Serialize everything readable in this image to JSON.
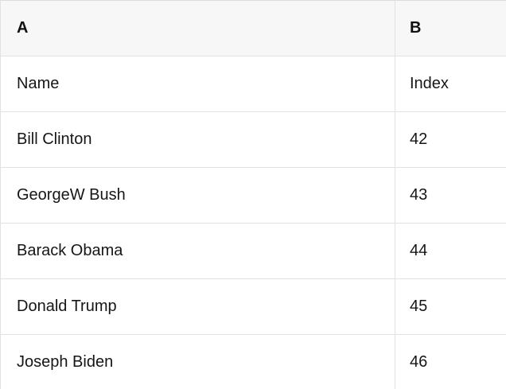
{
  "table": {
    "column_headers": [
      "A",
      "B"
    ],
    "rows": [
      {
        "cells": [
          "Name",
          "Index"
        ]
      },
      {
        "cells": [
          "Bill Clinton",
          "42"
        ]
      },
      {
        "cells": [
          "GeorgeW Bush",
          "43"
        ]
      },
      {
        "cells": [
          "Barack Obama",
          "44"
        ]
      },
      {
        "cells": [
          "Donald Trump",
          "45"
        ]
      },
      {
        "cells": [
          "Joseph Biden",
          "46"
        ]
      }
    ]
  },
  "colors": {
    "header_bg": "#f7f7f7",
    "border": "#e2e2e2",
    "text": "#161616"
  }
}
